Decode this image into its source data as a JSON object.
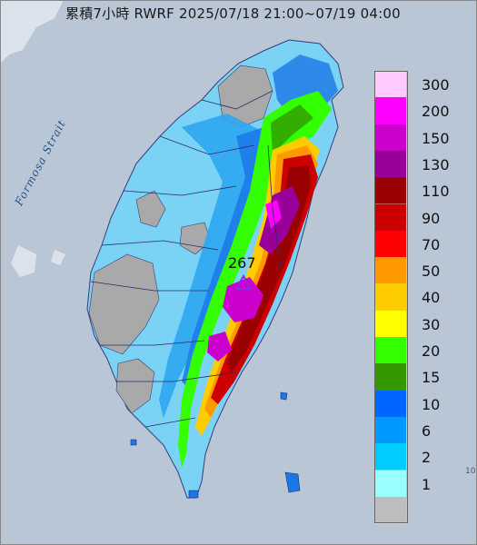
{
  "title": "累積7小時 RWRF 2025/07/18 21:00~07/19 04:00",
  "map_labels": {
    "strait": "Formosa Strait",
    "max_value": "267"
  },
  "corner_text": "10",
  "legend": {
    "levels": [
      {
        "label": "300",
        "color": "#ffc8ff"
      },
      {
        "label": "200",
        "color": "#ff00ff"
      },
      {
        "label": "150",
        "color": "#cc00cc"
      },
      {
        "label": "130",
        "color": "#990099"
      },
      {
        "label": "110",
        "color": "#990000"
      },
      {
        "label": "90",
        "color": "#cc0000"
      },
      {
        "label": "70",
        "color": "#ff0000"
      },
      {
        "label": "50",
        "color": "#ff9900"
      },
      {
        "label": "40",
        "color": "#ffcc00"
      },
      {
        "label": "30",
        "color": "#ffff00"
      },
      {
        "label": "20",
        "color": "#33ff00"
      },
      {
        "label": "15",
        "color": "#339900"
      },
      {
        "label": "10",
        "color": "#0066ff"
      },
      {
        "label": "6",
        "color": "#0099ff"
      },
      {
        "label": "2",
        "color": "#00ccff"
      },
      {
        "label": "1",
        "color": "#99ffff"
      },
      {
        "label": "",
        "color": "#bdbdbd"
      }
    ]
  },
  "colors": {
    "sea": "#b9c6d6",
    "light_blue": "#7ad3f5",
    "mid_blue": "#2ea6f2",
    "blue": "#1a78e6",
    "gray_land": "#a9a9a9",
    "marker": "#8a2be2"
  }
}
